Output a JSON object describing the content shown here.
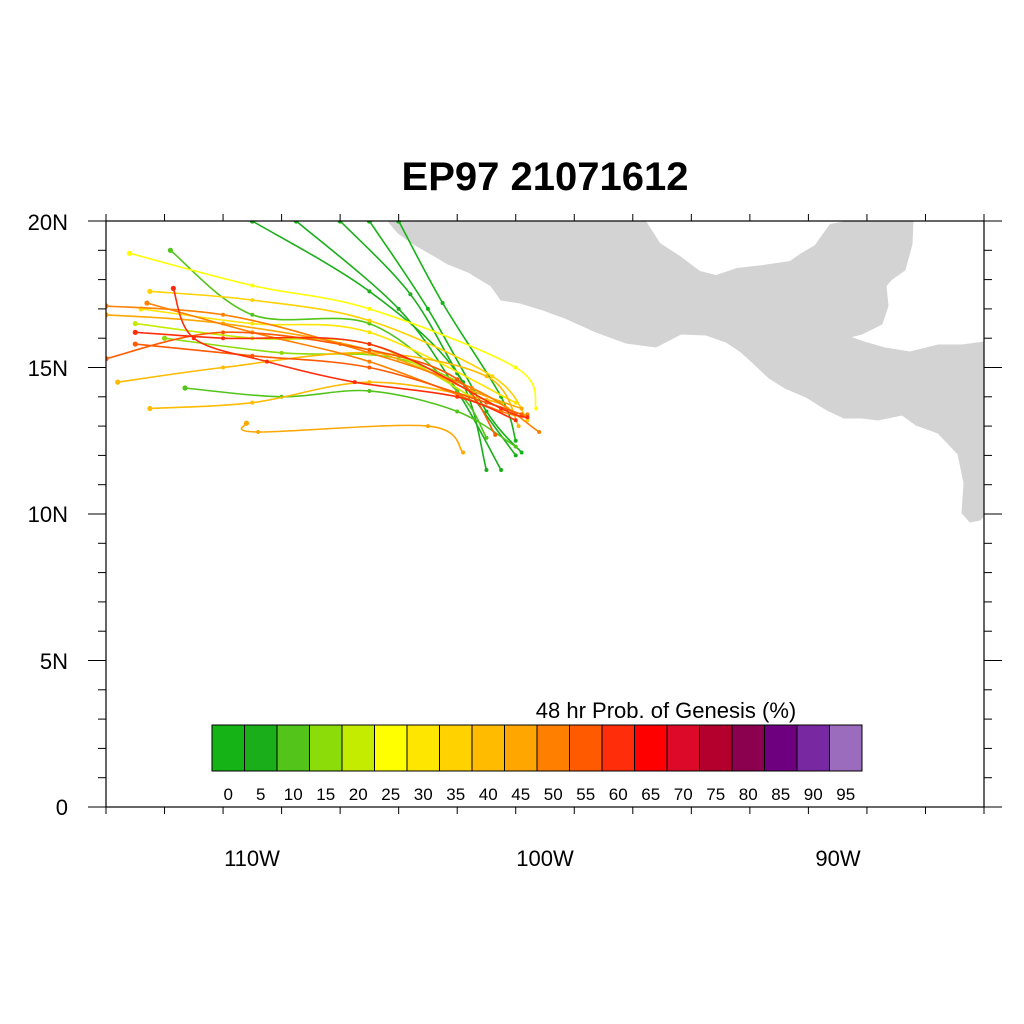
{
  "title": "EP97 21071612",
  "map": {
    "lon_range": [
      -115,
      -85
    ],
    "lat_range": [
      0,
      20
    ],
    "land_color": "#d3d3d3",
    "y_ticks": [
      {
        "value": 20,
        "label": "20N"
      },
      {
        "value": 15,
        "label": "15N"
      },
      {
        "value": 10,
        "label": "10N"
      },
      {
        "value": 5,
        "label": "5N"
      },
      {
        "value": 0,
        "label": "0"
      }
    ],
    "x_ticks": [
      {
        "value": -110,
        "label": "110W"
      },
      {
        "value": -100,
        "label": "100W"
      },
      {
        "value": -90,
        "label": "90W"
      }
    ]
  },
  "colorbar": {
    "title": "48 hr Prob. of Genesis (%)",
    "labels": [
      "0",
      "5",
      "10",
      "15",
      "20",
      "25",
      "30",
      "35",
      "40",
      "45",
      "50",
      "55",
      "60",
      "65",
      "70",
      "75",
      "80",
      "85",
      "90",
      "95"
    ],
    "colors": [
      "#16b316",
      "#1aae1a",
      "#52c41a",
      "#8cdc0a",
      "#c4ec00",
      "#ffff00",
      "#ffe600",
      "#ffd200",
      "#ffbb00",
      "#ffa600",
      "#ff8000",
      "#ff5a00",
      "#ff2d0a",
      "#ff0000",
      "#dc0a28",
      "#b4002d",
      "#8c0050",
      "#6e0080",
      "#7828a0",
      "#9b6cbe"
    ]
  },
  "chart_data": {
    "type": "line",
    "title": "EP97 21071612",
    "xlabel": "",
    "ylabel": "",
    "xlim": [
      -115,
      -85
    ],
    "ylim": [
      0,
      20
    ],
    "series": [
      {
        "color": "#1aae1a",
        "values": [
          [
            -110,
            20
          ],
          [
            -106,
            17.6
          ],
          [
            -103,
            14.8
          ],
          [
            -102,
            11.5
          ]
        ]
      },
      {
        "color": "#1aae1a",
        "values": [
          [
            -108.5,
            20
          ],
          [
            -105,
            17
          ],
          [
            -103,
            14.2
          ],
          [
            -101.5,
            11.5
          ]
        ]
      },
      {
        "color": "#1aae1a",
        "values": [
          [
            -107,
            20
          ],
          [
            -104.6,
            17.5
          ],
          [
            -102.8,
            14.5
          ],
          [
            -101,
            12
          ]
        ]
      },
      {
        "color": "#16b316",
        "values": [
          [
            -106,
            20
          ],
          [
            -104,
            17
          ],
          [
            -102,
            13.5
          ],
          [
            -100.8,
            12.1
          ]
        ]
      },
      {
        "color": "#16b316",
        "values": [
          [
            -105,
            20
          ],
          [
            -103.5,
            17.2
          ],
          [
            -101.5,
            14
          ],
          [
            -101,
            12.5
          ]
        ]
      },
      {
        "color": "#52c41a",
        "values": [
          [
            -112.8,
            19
          ],
          [
            -110,
            16.8
          ],
          [
            -106,
            16.5
          ],
          [
            -103,
            14.2
          ],
          [
            -102,
            12.6
          ]
        ]
      },
      {
        "color": "#52c41a",
        "values": [
          [
            -112.3,
            14.3
          ],
          [
            -109,
            14
          ],
          [
            -106,
            14.2
          ],
          [
            -103,
            13.5
          ],
          [
            -101,
            12.3
          ]
        ]
      },
      {
        "color": "#8cdc0a",
        "values": [
          [
            -113,
            16
          ],
          [
            -109,
            15.5
          ],
          [
            -105,
            15.3
          ],
          [
            -101.5,
            13.8
          ]
        ]
      },
      {
        "color": "#c4ec00",
        "values": [
          [
            -114,
            16.5
          ],
          [
            -110,
            16
          ],
          [
            -106,
            15.8
          ],
          [
            -102.5,
            14
          ]
        ]
      },
      {
        "color": "#ffff00",
        "values": [
          [
            -114.2,
            18.9
          ],
          [
            -110,
            17.8
          ],
          [
            -106,
            17
          ],
          [
            -101,
            15
          ],
          [
            -100.3,
            13.6
          ]
        ]
      },
      {
        "color": "#ffe600",
        "values": [
          [
            -113.8,
            17
          ],
          [
            -110,
            16.5
          ],
          [
            -106,
            16.2
          ],
          [
            -101,
            13.8
          ]
        ]
      },
      {
        "color": "#ffd200",
        "values": [
          [
            -113.5,
            17.6
          ],
          [
            -110,
            17.3
          ],
          [
            -106,
            16.6
          ],
          [
            -101.8,
            14.7
          ],
          [
            -100.6,
            13.2
          ]
        ]
      },
      {
        "color": "#ffbb00",
        "values": [
          [
            -114.6,
            14.5
          ],
          [
            -111,
            15
          ],
          [
            -106,
            15.5
          ],
          [
            -102,
            14.7
          ],
          [
            -100.9,
            13
          ]
        ]
      },
      {
        "color": "#ffbb00",
        "values": [
          [
            -113.5,
            13.6
          ],
          [
            -110,
            13.8
          ],
          [
            -106,
            14.5
          ],
          [
            -102,
            13.9
          ],
          [
            -101,
            13.4
          ]
        ]
      },
      {
        "color": "#ffa600",
        "values": [
          [
            -110.2,
            13.1
          ],
          [
            -109.8,
            12.8
          ],
          [
            -104,
            13
          ],
          [
            -102.8,
            12.1
          ]
        ]
      },
      {
        "color": "#ffa600",
        "values": [
          [
            -115,
            16.8
          ],
          [
            -111,
            16.5
          ],
          [
            -106,
            15.6
          ],
          [
            -102.5,
            14.2
          ],
          [
            -100.8,
            13.6
          ]
        ]
      },
      {
        "color": "#ff8000",
        "values": [
          [
            -113.6,
            17.2
          ],
          [
            -110,
            16.2
          ],
          [
            -106,
            15.2
          ],
          [
            -101.5,
            13.5
          ],
          [
            -100.6,
            13.4
          ]
        ]
      },
      {
        "color": "#ff8000",
        "values": [
          [
            -115,
            17.1
          ],
          [
            -111,
            16.8
          ],
          [
            -107,
            15.8
          ],
          [
            -102.5,
            14.3
          ],
          [
            -100.2,
            12.8
          ]
        ]
      },
      {
        "color": "#ff5a00",
        "values": [
          [
            -114,
            15.8
          ],
          [
            -110,
            15.4
          ],
          [
            -106,
            15
          ],
          [
            -102,
            13.8
          ],
          [
            -100.8,
            13.4
          ]
        ]
      },
      {
        "color": "#ff5a00",
        "values": [
          [
            -115,
            15.3
          ],
          [
            -111,
            16.2
          ],
          [
            -106,
            15.6
          ],
          [
            -103,
            14.6
          ],
          [
            -101.7,
            12.7
          ]
        ]
      },
      {
        "color": "#ff2d0a",
        "values": [
          [
            -112.7,
            17.7
          ],
          [
            -112,
            16
          ],
          [
            -109.5,
            15.2
          ],
          [
            -106.5,
            14.5
          ],
          [
            -103,
            14
          ],
          [
            -101,
            13.2
          ]
        ]
      },
      {
        "color": "#ff2d0a",
        "values": [
          [
            -114,
            16.2
          ],
          [
            -111,
            16
          ],
          [
            -106,
            15.8
          ],
          [
            -101.5,
            13.6
          ],
          [
            -100.6,
            13.3
          ]
        ]
      }
    ]
  }
}
